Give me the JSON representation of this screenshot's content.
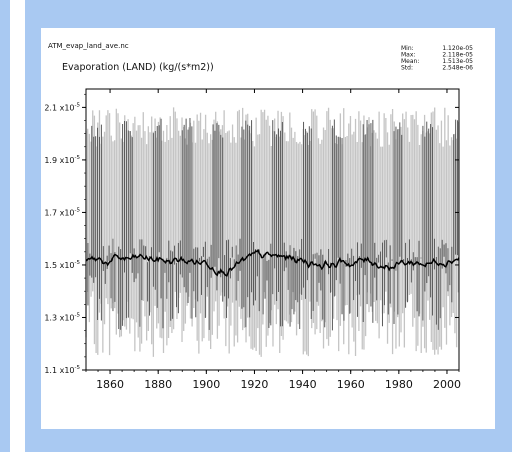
{
  "file_name": "ATM_evap_land_ave.nc",
  "colors": {
    "frame": "#a9c9f2",
    "dark_series": "#5a5a5a",
    "light_series": "#c4c4c4",
    "mean_line": "#000000"
  },
  "chart_data": {
    "type": "line",
    "title": "Evaporation (LAND) (kg/(s*m2))",
    "stats": [
      {
        "label": "Min:",
        "value": "1.120e-05"
      },
      {
        "label": "Max:",
        "value": "2.118e-05"
      },
      {
        "label": "Mean:",
        "value": "1.513e-05"
      },
      {
        "label": "Std:",
        "value": "2.548e-06"
      }
    ],
    "xlim": [
      1850,
      2005
    ],
    "ylim": [
      1.1e-05,
      2.17e-05
    ],
    "x_ticks": [
      "1860",
      "1880",
      "1900",
      "1920",
      "1940",
      "1960",
      "1980",
      "2000"
    ],
    "y_ticks": [
      {
        "mantissa": "1.1",
        "value": 1.1e-05
      },
      {
        "mantissa": "1.3",
        "value": 1.3e-05
      },
      {
        "mantissa": "1.5",
        "value": 1.5e-05
      },
      {
        "mantissa": "1.7",
        "value": 1.7e-05
      },
      {
        "mantissa": "1.9",
        "value": 1.9e-05
      },
      {
        "mantissa": "2.1",
        "value": 2.1e-05
      }
    ],
    "y_exponent": "-5",
    "y_tick_times": "x10",
    "series": [
      {
        "style": "monthly-dark",
        "period_years": 12.5,
        "high_phase_max": 2.06e-05,
        "low_phase_max": 1.6e-05,
        "min": 1.2e-05
      },
      {
        "style": "monthly-light",
        "max": 2.1e-05,
        "min": 1.15e-05
      },
      {
        "style": "running-mean",
        "mean": 1.513e-05,
        "range": [
          1.47e-05,
          1.56e-05
        ]
      }
    ],
    "grid": false
  }
}
